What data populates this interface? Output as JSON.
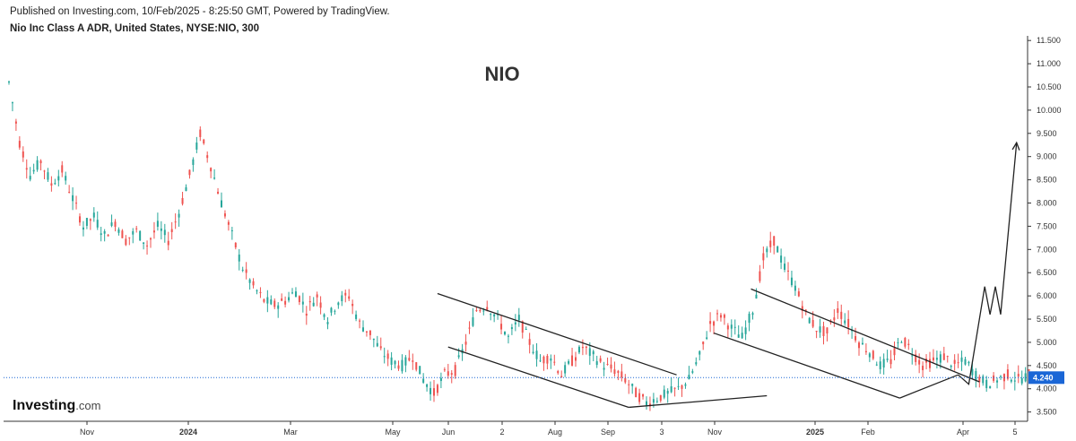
{
  "header": {
    "published": "Published on Investing.com, 10/Feb/2025 - 8:25:50 GMT, Powered by TradingView.",
    "instrument": "Nio Inc Class A ADR, United States, NYSE:NIO, 300"
  },
  "brand": {
    "logo_main": "Investing",
    "logo_suffix": ".com",
    "accent": "#f5b400"
  },
  "colors": {
    "up": "#26a69a",
    "down": "#ef5350",
    "lines": "#222222",
    "last_price": "#1a66d6"
  },
  "chart_data": {
    "type": "candlestick",
    "title": "NIO",
    "ylim": [
      3.3,
      11.6
    ],
    "y_ticks": [
      3.5,
      4.0,
      4.5,
      5.0,
      5.5,
      6.0,
      6.5,
      7.0,
      7.5,
      8.0,
      8.5,
      9.0,
      9.5,
      10.0,
      10.5,
      11.0,
      11.5
    ],
    "y_tick_labels": [
      "3.500",
      "4.000",
      "4.500",
      "5.000",
      "5.500",
      "6.000",
      "6.500",
      "7.000",
      "7.500",
      "8.000",
      "8.500",
      "9.000",
      "9.500",
      "10.000",
      "10.500",
      "11.000",
      "11.500"
    ],
    "x_tick_labels": [
      "Nov",
      "2024",
      "Mar",
      "May",
      "Jun",
      "2",
      "Aug",
      "Sep",
      "3",
      "Nov",
      "2025",
      "Feb",
      "Apr",
      "5"
    ],
    "last_price": 4.24,
    "last_price_label": "4.240",
    "price_path": [
      [
        0,
        10.6
      ],
      [
        1,
        9.3
      ],
      [
        2,
        8.6
      ],
      [
        3,
        8.9
      ],
      [
        4,
        8.4
      ],
      [
        5,
        8.7
      ],
      [
        6,
        8.1
      ],
      [
        7,
        7.5
      ],
      [
        8,
        7.7
      ],
      [
        9,
        7.3
      ],
      [
        10,
        7.6
      ],
      [
        11,
        7.2
      ],
      [
        12,
        7.4
      ],
      [
        13,
        7.1
      ],
      [
        14,
        7.5
      ],
      [
        15,
        7.2
      ],
      [
        16,
        7.8
      ],
      [
        17,
        8.6
      ],
      [
        18,
        9.5
      ],
      [
        19,
        8.8
      ],
      [
        20,
        8.0
      ],
      [
        21,
        7.3
      ],
      [
        22,
        6.6
      ],
      [
        23,
        6.2
      ],
      [
        24,
        5.9
      ],
      [
        25,
        5.8
      ],
      [
        26,
        5.9
      ],
      [
        27,
        6.1
      ],
      [
        28,
        5.7
      ],
      [
        29,
        6.0
      ],
      [
        30,
        5.5
      ],
      [
        31,
        5.9
      ],
      [
        32,
        6.0
      ],
      [
        33,
        5.4
      ],
      [
        34,
        5.2
      ],
      [
        35,
        4.8
      ],
      [
        36,
        4.6
      ],
      [
        37,
        4.5
      ],
      [
        38,
        4.7
      ],
      [
        39,
        4.2
      ],
      [
        40,
        3.9
      ],
      [
        41,
        4.3
      ],
      [
        42,
        4.4
      ],
      [
        43,
        5.0
      ],
      [
        44,
        5.7
      ],
      [
        45,
        5.8
      ],
      [
        46,
        5.5
      ],
      [
        47,
        5.1
      ],
      [
        48,
        5.5
      ],
      [
        49,
        5.0
      ],
      [
        50,
        4.6
      ],
      [
        51,
        4.7
      ],
      [
        52,
        4.3
      ],
      [
        53,
        4.6
      ],
      [
        54,
        4.9
      ],
      [
        55,
        4.7
      ],
      [
        56,
        4.5
      ],
      [
        57,
        4.4
      ],
      [
        58,
        4.2
      ],
      [
        59,
        3.9
      ],
      [
        60,
        3.7
      ],
      [
        61,
        3.8
      ],
      [
        62,
        3.9
      ],
      [
        63,
        4.0
      ],
      [
        64,
        4.2
      ],
      [
        65,
        4.7
      ],
      [
        66,
        5.4
      ],
      [
        67,
        5.6
      ],
      [
        68,
        5.3
      ],
      [
        69,
        5.1
      ],
      [
        70,
        5.7
      ],
      [
        71,
        6.8
      ],
      [
        72,
        7.2
      ],
      [
        73,
        6.6
      ],
      [
        74,
        6.2
      ],
      [
        75,
        5.6
      ],
      [
        76,
        5.3
      ],
      [
        77,
        5.2
      ],
      [
        78,
        5.7
      ],
      [
        79,
        5.4
      ],
      [
        80,
        5.0
      ],
      [
        81,
        4.8
      ],
      [
        82,
        4.5
      ],
      [
        83,
        4.6
      ],
      [
        84,
        5.1
      ],
      [
        85,
        4.8
      ],
      [
        86,
        4.5
      ],
      [
        87,
        4.6
      ],
      [
        88,
        4.7
      ],
      [
        89,
        4.5
      ],
      [
        90,
        4.6
      ],
      [
        91,
        4.3
      ],
      [
        92,
        4.1
      ],
      [
        93,
        4.2
      ],
      [
        94,
        4.3
      ],
      [
        95,
        4.2
      ],
      [
        96,
        4.3
      ],
      [
        97,
        4.24
      ]
    ],
    "annotations": [
      {
        "type": "channel_upper",
        "points": [
          [
            40.5,
            6.05
          ],
          [
            63,
            4.3
          ]
        ]
      },
      {
        "type": "channel_lower",
        "points": [
          [
            41.5,
            4.9
          ],
          [
            58.5,
            3.6
          ]
        ]
      },
      {
        "type": "trendline",
        "points": [
          [
            58.5,
            3.6
          ],
          [
            71.5,
            3.85
          ]
        ]
      },
      {
        "type": "channel_upper",
        "points": [
          [
            70,
            6.15
          ],
          [
            91.5,
            4.15
          ]
        ]
      },
      {
        "type": "channel_lower",
        "points": [
          [
            66.5,
            5.2
          ],
          [
            84,
            3.8
          ]
        ]
      },
      {
        "type": "trendline",
        "points": [
          [
            84,
            3.8
          ],
          [
            89.5,
            4.3
          ]
        ]
      },
      {
        "type": "projection_path",
        "points": [
          [
            89.5,
            4.3
          ],
          [
            90.5,
            4.1
          ],
          [
            92,
            6.2
          ],
          [
            92.5,
            5.6
          ],
          [
            93,
            6.2
          ],
          [
            93.5,
            5.6
          ],
          [
            95,
            9.3
          ]
        ]
      }
    ]
  }
}
